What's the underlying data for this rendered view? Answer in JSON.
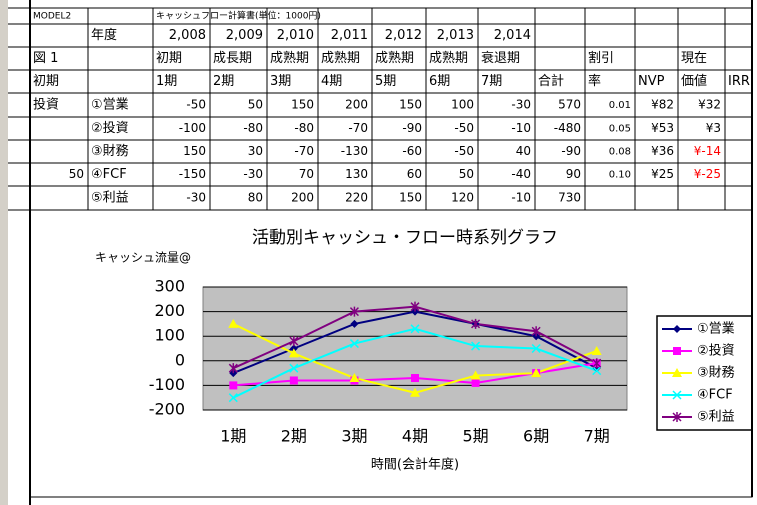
{
  "sheet": {
    "rows": [
      [
        "MODEL2",
        "",
        "キャッシュフロー計算書(単位：1000円)",
        "",
        "",
        "",
        "",
        "",
        "",
        "",
        "",
        "",
        "",
        ""
      ],
      [
        "",
        "年度",
        "2,008",
        "2,009",
        "2,010",
        "2,011",
        "2,012",
        "2,013",
        "2,014",
        "",
        "",
        "",
        "",
        ""
      ],
      [
        "図 1",
        "",
        "初期",
        "成長期",
        "成熟期",
        "成熟期",
        "成熟期",
        "成熟期",
        "衰退期",
        "",
        "割引",
        "",
        "現在",
        ""
      ],
      [
        "初期",
        "",
        "1期",
        "2期",
        "3期",
        "4期",
        "5期",
        "6期",
        "7期",
        "合計",
        "率",
        "NVP",
        "価値",
        "IRR"
      ],
      [
        "投資",
        "①営業",
        "-50",
        "50",
        "150",
        "200",
        "150",
        "100",
        "-30",
        "570",
        "0.01",
        "¥82",
        "¥32",
        ""
      ],
      [
        "",
        "②投資",
        "-100",
        "-80",
        "-80",
        "-70",
        "-90",
        "-50",
        "-10",
        "-480",
        "0.05",
        "¥53",
        "¥3",
        ""
      ],
      [
        "",
        "③財務",
        "150",
        "30",
        "-70",
        "-130",
        "-60",
        "-50",
        "40",
        "-90",
        "0.08",
        "¥36",
        "¥-14",
        ""
      ],
      [
        "50",
        "④FCF",
        "-150",
        "-30",
        "70",
        "130",
        "60",
        "50",
        "-40",
        "90",
        "0.10",
        "¥25",
        "¥-25",
        ""
      ],
      [
        "",
        "⑤利益",
        "-30",
        "80",
        "200",
        "220",
        "150",
        "120",
        "-10",
        "730",
        "",
        "",
        "",
        ""
      ]
    ]
  },
  "chart_data": {
    "type": "line",
    "title": "活動別キャッシュ・フロー時系列グラフ",
    "y_label": "キャッシュ流量@",
    "x_label": "時間(会計年度)",
    "categories": [
      "1期",
      "2期",
      "3期",
      "4期",
      "5期",
      "6期",
      "7期"
    ],
    "ylim": [
      -200,
      300
    ],
    "yticks": [
      -200,
      -100,
      0,
      100,
      200,
      300
    ],
    "grid": true,
    "legend": "right",
    "series": [
      {
        "name": "①営業",
        "color": "#000080",
        "marker": "diamond",
        "values": [
          -50,
          50,
          150,
          200,
          150,
          100,
          -30
        ]
      },
      {
        "name": "②投資",
        "color": "#ff00ff",
        "marker": "square",
        "values": [
          -100,
          -80,
          -80,
          -70,
          -90,
          -50,
          -10
        ]
      },
      {
        "name": "③財務",
        "color": "#ffff00",
        "marker": "triangle",
        "values": [
          150,
          30,
          -70,
          -130,
          -60,
          -50,
          40
        ]
      },
      {
        "name": "④FCF",
        "color": "#00ffff",
        "marker": "x",
        "values": [
          -150,
          -30,
          70,
          130,
          60,
          50,
          -40
        ]
      },
      {
        "name": "⑤利益",
        "color": "#800080",
        "marker": "star",
        "values": [
          -30,
          80,
          200,
          220,
          150,
          120,
          -10
        ]
      }
    ]
  }
}
